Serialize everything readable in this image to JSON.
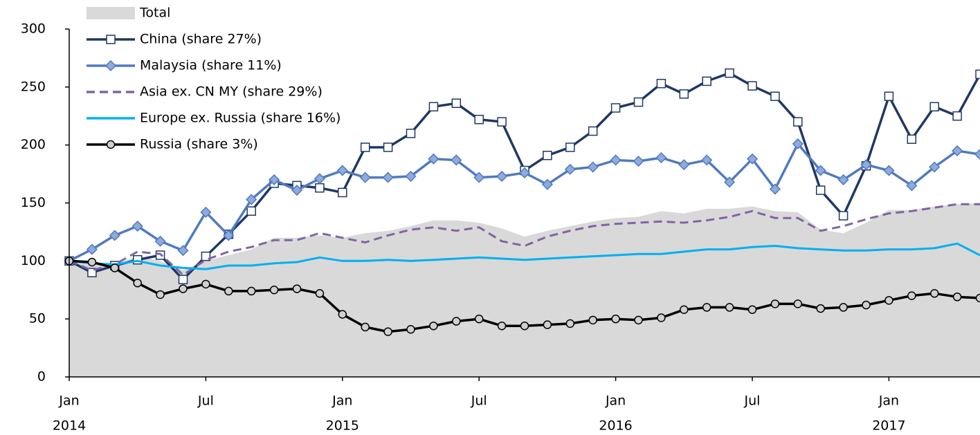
{
  "chart_data": {
    "type": "line",
    "categories": [
      "Jan",
      null,
      null,
      null,
      null,
      null,
      "Jul",
      null,
      null,
      null,
      null,
      null,
      "Jan",
      null,
      null,
      null,
      null,
      null,
      "Jul",
      null,
      null,
      null,
      null,
      null,
      "Jan",
      null,
      null,
      null,
      null,
      null,
      "Jul",
      null,
      null,
      null,
      null,
      null,
      "Jan",
      null,
      null,
      null,
      null
    ],
    "category_years": [
      "2014",
      null,
      null,
      null,
      null,
      null,
      null,
      null,
      null,
      null,
      null,
      null,
      "2015",
      null,
      null,
      null,
      null,
      null,
      null,
      null,
      null,
      null,
      null,
      null,
      "2016",
      null,
      null,
      null,
      null,
      null,
      null,
      null,
      null,
      null,
      null,
      null,
      "2017",
      null,
      null,
      null,
      null
    ],
    "ylim": [
      0,
      300
    ],
    "yticks": [
      0,
      50,
      100,
      150,
      200,
      250,
      300
    ],
    "legend": "upper left",
    "series": [
      {
        "name": "Total",
        "color": "#d9d9d9",
        "area": true,
        "values": [
          100,
          98,
          97,
          104,
          100,
          92,
          100,
          105,
          110,
          120,
          120,
          122,
          120,
          124,
          126,
          130,
          135,
          135,
          133,
          128,
          121,
          126,
          130,
          134,
          137,
          138,
          143,
          141,
          145,
          145,
          147,
          143,
          142,
          127,
          124,
          133,
          144,
          144,
          147,
          149,
          150
        ]
      },
      {
        "name": "China (share 27%)",
        "color": "#1f3864",
        "marker": "square",
        "marker_color": "#ffffff",
        "values": [
          100,
          90,
          96,
          101,
          105,
          84,
          104,
          123,
          143,
          167,
          165,
          163,
          159,
          198,
          198,
          210,
          233,
          236,
          222,
          220,
          178,
          191,
          198,
          212,
          232,
          237,
          253,
          244,
          255,
          262,
          251,
          242,
          220,
          161,
          139,
          182,
          242,
          205,
          233,
          225,
          261
        ]
      },
      {
        "name": "Malaysia (share 11%)",
        "color": "#4f7ac0",
        "marker": "diamond",
        "marker_color": "#8faadc",
        "values": [
          100,
          110,
          122,
          130,
          117,
          109,
          142,
          122,
          153,
          170,
          161,
          171,
          178,
          172,
          172,
          173,
          188,
          187,
          172,
          173,
          176,
          166,
          179,
          181,
          187,
          186,
          189,
          183,
          187,
          168,
          188,
          162,
          201,
          178,
          170,
          183,
          178,
          165,
          181,
          195,
          192
        ]
      },
      {
        "name": "Asia ex. CN MY (share 29%)",
        "color": "#8064a2",
        "dash": true,
        "values": [
          100,
          92,
          97,
          108,
          106,
          88,
          101,
          108,
          112,
          118,
          118,
          124,
          120,
          116,
          122,
          127,
          129,
          126,
          129,
          117,
          113,
          121,
          126,
          130,
          132,
          133,
          134,
          133,
          135,
          138,
          143,
          137,
          137,
          126,
          130,
          136,
          141,
          143,
          146,
          149,
          149
        ]
      },
      {
        "name": "Europe ex. Russia (share 16%)",
        "color": "#00b0f0",
        "values": [
          100,
          98,
          97,
          100,
          96,
          94,
          93,
          96,
          96,
          98,
          99,
          103,
          100,
          100,
          101,
          100,
          101,
          102,
          103,
          102,
          101,
          102,
          103,
          104,
          105,
          106,
          106,
          108,
          110,
          110,
          112,
          113,
          111,
          110,
          109,
          109,
          110,
          110,
          111,
          115,
          105
        ]
      },
      {
        "name": "Russia (share 3%)",
        "color": "#000000",
        "marker": "circle",
        "marker_color": "#d0d0d0",
        "values": [
          100,
          99,
          94,
          81,
          71,
          76,
          80,
          74,
          74,
          75,
          76,
          72,
          54,
          43,
          39,
          41,
          44,
          48,
          50,
          44,
          44,
          45,
          46,
          49,
          50,
          49,
          51,
          58,
          60,
          60,
          58,
          63,
          63,
          59,
          60,
          62,
          66,
          70,
          72,
          69,
          68
        ]
      }
    ]
  }
}
